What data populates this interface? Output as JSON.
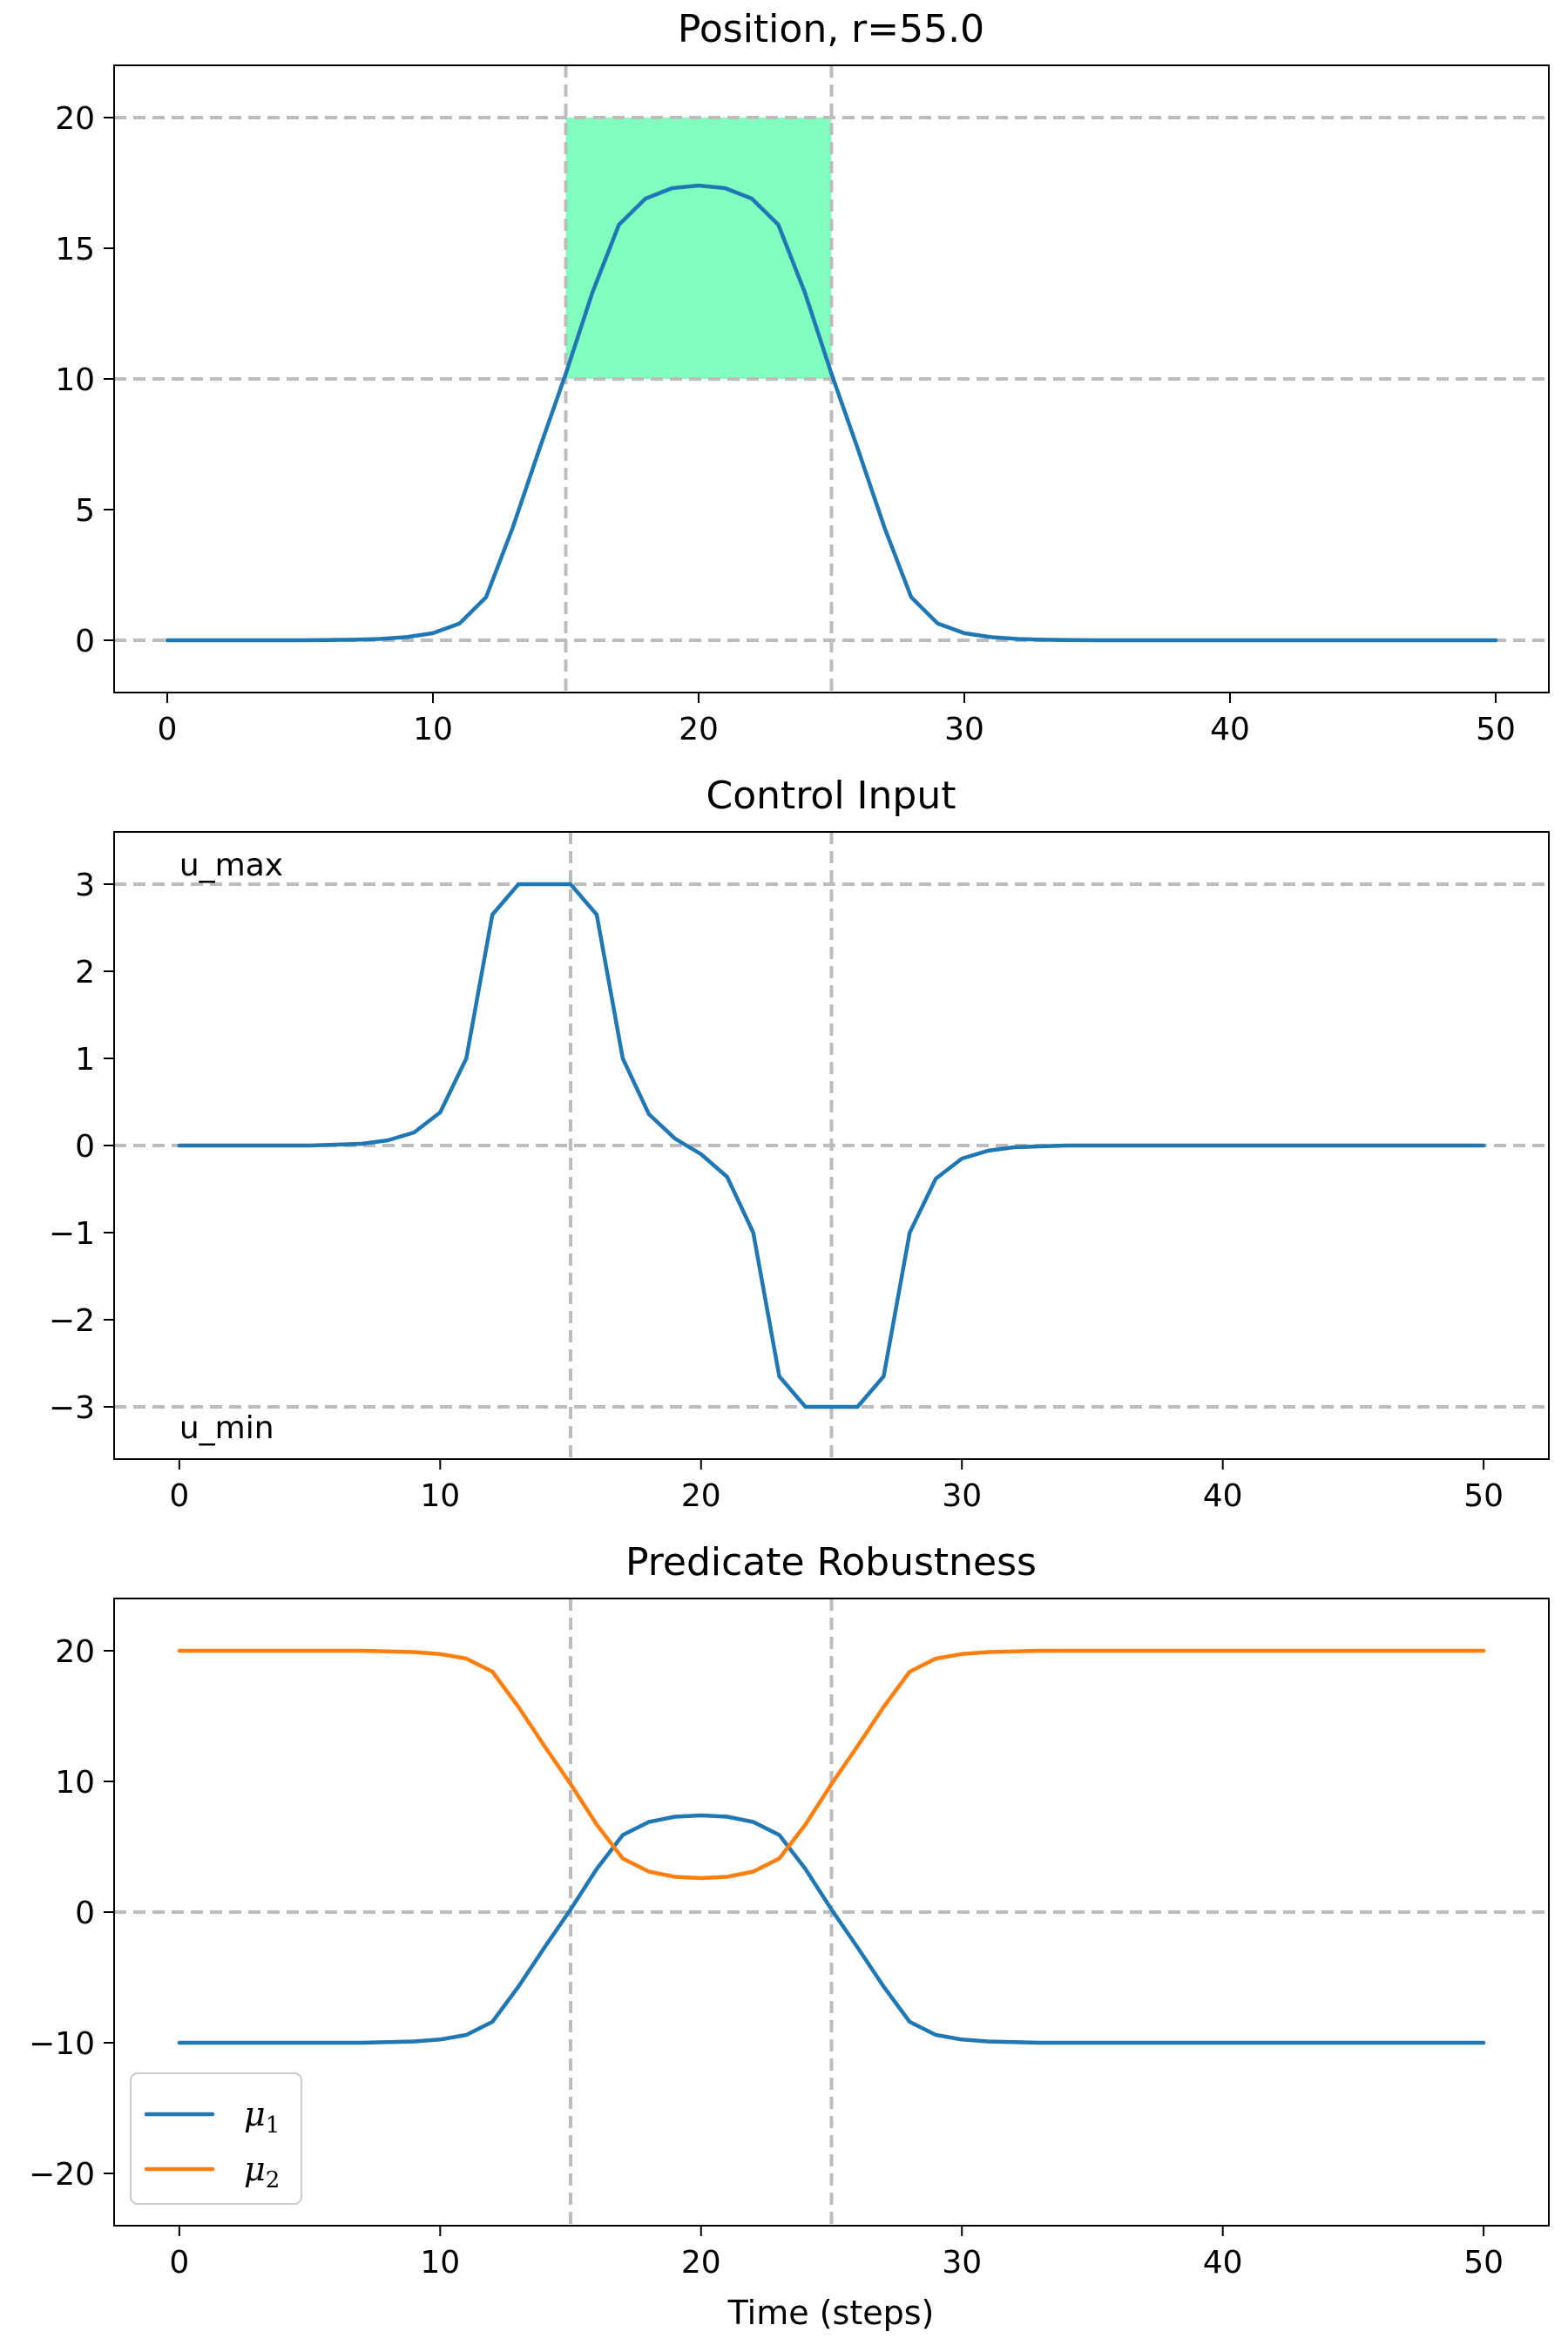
{
  "chart_data": [
    {
      "type": "line",
      "title": "Position, r=55.0",
      "xlabel": "",
      "ylabel": "",
      "xlim": [
        -2,
        52
      ],
      "ylim": [
        -2,
        22
      ],
      "xticks": [
        0,
        10,
        20,
        30,
        40,
        50
      ],
      "yticks": [
        0,
        5,
        10,
        15,
        20
      ],
      "grid": {
        "h": [
          0,
          10,
          20
        ],
        "v": [
          15,
          25
        ]
      },
      "shaded_region": {
        "x": [
          15,
          25
        ],
        "y": [
          10,
          20
        ],
        "color": "#80ffbf"
      },
      "annotations": [],
      "series": [
        {
          "color": "#1f77b4",
          "x": [
            0,
            1,
            2,
            3,
            4,
            5,
            6,
            7,
            8,
            9,
            10,
            11,
            12,
            13,
            14,
            15,
            16,
            17,
            18,
            19,
            20,
            21,
            22,
            23,
            24,
            25,
            26,
            27,
            28,
            29,
            30,
            31,
            32,
            33,
            34,
            35,
            36,
            37,
            38,
            39,
            40,
            41,
            42,
            43,
            44,
            45,
            46,
            47,
            48,
            49,
            50
          ],
          "y": [
            0,
            0,
            0,
            0,
            0,
            0,
            0.01,
            0.02,
            0.05,
            0.12,
            0.27,
            0.64,
            1.65,
            4.3,
            7.3,
            10.2,
            13.3,
            15.9,
            16.9,
            17.3,
            17.4,
            17.3,
            16.9,
            15.9,
            13.3,
            10.2,
            7.3,
            4.3,
            1.65,
            0.64,
            0.27,
            0.12,
            0.05,
            0.02,
            0.01,
            0,
            0,
            0,
            0,
            0,
            0,
            0,
            0,
            0,
            0,
            0,
            0,
            0,
            0,
            0,
            0
          ]
        }
      ]
    },
    {
      "type": "line",
      "title": "Control Input",
      "xlabel": "",
      "ylabel": "",
      "xlim": [
        -2.5,
        52.5
      ],
      "ylim": [
        -3.6,
        3.6
      ],
      "xticks": [
        0,
        10,
        20,
        30,
        40,
        50
      ],
      "yticks": [
        -3,
        -2,
        -1,
        0,
        1,
        2,
        3
      ],
      "grid": {
        "h": [
          -3,
          0,
          3
        ],
        "v": [
          15,
          25
        ]
      },
      "annotations": [
        {
          "text": "u_max",
          "x": 0,
          "y": 3
        },
        {
          "text": "u_min",
          "x": 0,
          "y": -3
        }
      ],
      "series": [
        {
          "color": "#1f77b4",
          "x": [
            0,
            1,
            2,
            3,
            4,
            5,
            6,
            7,
            8,
            9,
            10,
            11,
            12,
            13,
            14,
            15,
            16,
            17,
            18,
            19,
            20,
            21,
            22,
            23,
            24,
            25,
            26,
            27,
            28,
            29,
            30,
            31,
            32,
            33,
            34,
            35,
            36,
            37,
            38,
            39,
            40,
            41,
            42,
            43,
            44,
            45,
            46,
            47,
            48,
            49,
            50
          ],
          "y": [
            0,
            0,
            0,
            0,
            0,
            0,
            0.01,
            0.02,
            0.06,
            0.15,
            0.38,
            1.0,
            2.65,
            3.0,
            3.0,
            3.0,
            2.65,
            1.0,
            0.36,
            0.08,
            -0.1,
            -0.36,
            -1.0,
            -2.65,
            -3.0,
            -3.0,
            -3.0,
            -2.65,
            -1.0,
            -0.38,
            -0.15,
            -0.06,
            -0.02,
            -0.01,
            0,
            0,
            0,
            0,
            0,
            0,
            0,
            0,
            0,
            0,
            0,
            0,
            0,
            0,
            0,
            0,
            0
          ]
        }
      ]
    },
    {
      "type": "line",
      "title": "Predicate Robustness",
      "xlabel": "Time (steps)",
      "ylabel": "",
      "xlim": [
        -2.5,
        52.5
      ],
      "ylim": [
        -24,
        24
      ],
      "xticks": [
        0,
        10,
        20,
        30,
        40,
        50
      ],
      "yticks": [
        -20,
        -10,
        0,
        10,
        20
      ],
      "grid": {
        "h": [
          0
        ],
        "v": [
          15,
          25
        ]
      },
      "legend": {
        "position": "lower-left"
      },
      "annotations": [],
      "series": [
        {
          "name": "μ",
          "sub": "1",
          "color": "#1f77b4",
          "x": [
            0,
            1,
            2,
            3,
            4,
            5,
            6,
            7,
            8,
            9,
            10,
            11,
            12,
            13,
            14,
            15,
            16,
            17,
            18,
            19,
            20,
            21,
            22,
            23,
            24,
            25,
            26,
            27,
            28,
            29,
            30,
            31,
            32,
            33,
            34,
            35,
            36,
            37,
            38,
            39,
            40,
            41,
            42,
            43,
            44,
            45,
            46,
            47,
            48,
            49,
            50
          ],
          "y": [
            -10,
            -10,
            -10,
            -10,
            -10,
            -10,
            -10,
            -10,
            -9.95,
            -9.9,
            -9.75,
            -9.4,
            -8.4,
            -5.7,
            -2.7,
            0.2,
            3.3,
            5.9,
            6.9,
            7.3,
            7.4,
            7.3,
            6.9,
            5.9,
            3.3,
            0.2,
            -2.7,
            -5.7,
            -8.4,
            -9.4,
            -9.75,
            -9.9,
            -9.95,
            -10,
            -10,
            -10,
            -10,
            -10,
            -10,
            -10,
            -10,
            -10,
            -10,
            -10,
            -10,
            -10,
            -10,
            -10,
            -10,
            -10,
            -10
          ]
        },
        {
          "name": "μ",
          "sub": "2",
          "color": "#ff7f0e",
          "x": [
            0,
            1,
            2,
            3,
            4,
            5,
            6,
            7,
            8,
            9,
            10,
            11,
            12,
            13,
            14,
            15,
            16,
            17,
            18,
            19,
            20,
            21,
            22,
            23,
            24,
            25,
            26,
            27,
            28,
            29,
            30,
            31,
            32,
            33,
            34,
            35,
            36,
            37,
            38,
            39,
            40,
            41,
            42,
            43,
            44,
            45,
            46,
            47,
            48,
            49,
            50
          ],
          "y": [
            20,
            20,
            20,
            20,
            20,
            20,
            20,
            20,
            19.95,
            19.9,
            19.75,
            19.4,
            18.4,
            15.7,
            12.7,
            9.8,
            6.7,
            4.1,
            3.1,
            2.7,
            2.6,
            2.7,
            3.1,
            4.1,
            6.7,
            9.8,
            12.7,
            15.7,
            18.4,
            19.4,
            19.75,
            19.9,
            19.95,
            20,
            20,
            20,
            20,
            20,
            20,
            20,
            20,
            20,
            20,
            20,
            20,
            20,
            20,
            20,
            20,
            20,
            20
          ]
        }
      ]
    }
  ]
}
